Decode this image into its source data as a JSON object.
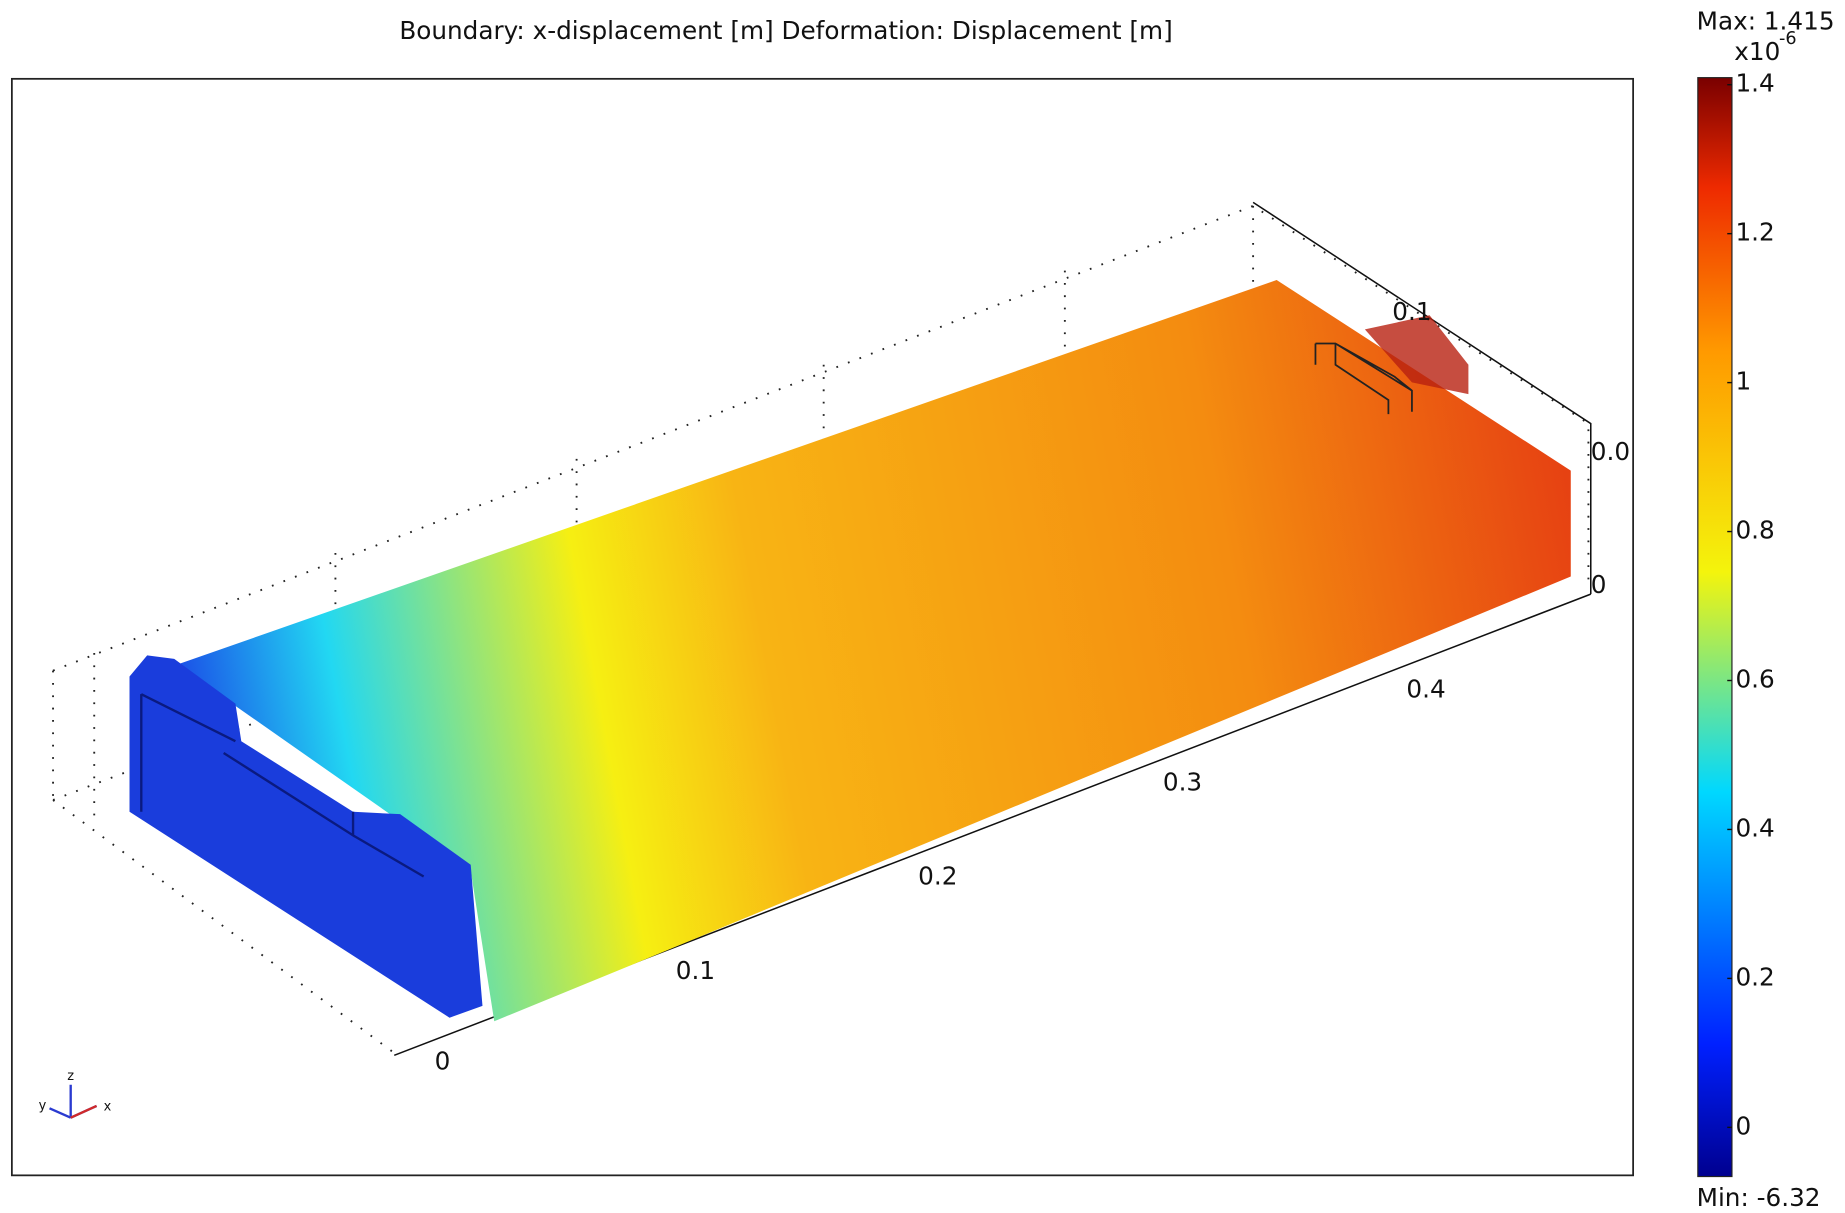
{
  "title": "Boundary: x-displacement [m]   Deformation: Displacement [m]",
  "colorbar": {
    "max_label": "Max: 1.415",
    "exponent_base": "x10",
    "exponent_power": "-6",
    "min_label": "Min: -6.32",
    "ticks": [
      "1.4",
      "1.2",
      "1",
      "0.8",
      "0.6",
      "0.4",
      "0.2",
      "0"
    ]
  },
  "axes": {
    "x_ticks": [
      "0",
      "0.1",
      "0.2",
      "0.3",
      "0.4"
    ],
    "y_tick": "0.1",
    "z_ticks": [
      "0.0",
      "0"
    ]
  },
  "triad": {
    "x": "x",
    "y": "y",
    "z": "z"
  }
}
